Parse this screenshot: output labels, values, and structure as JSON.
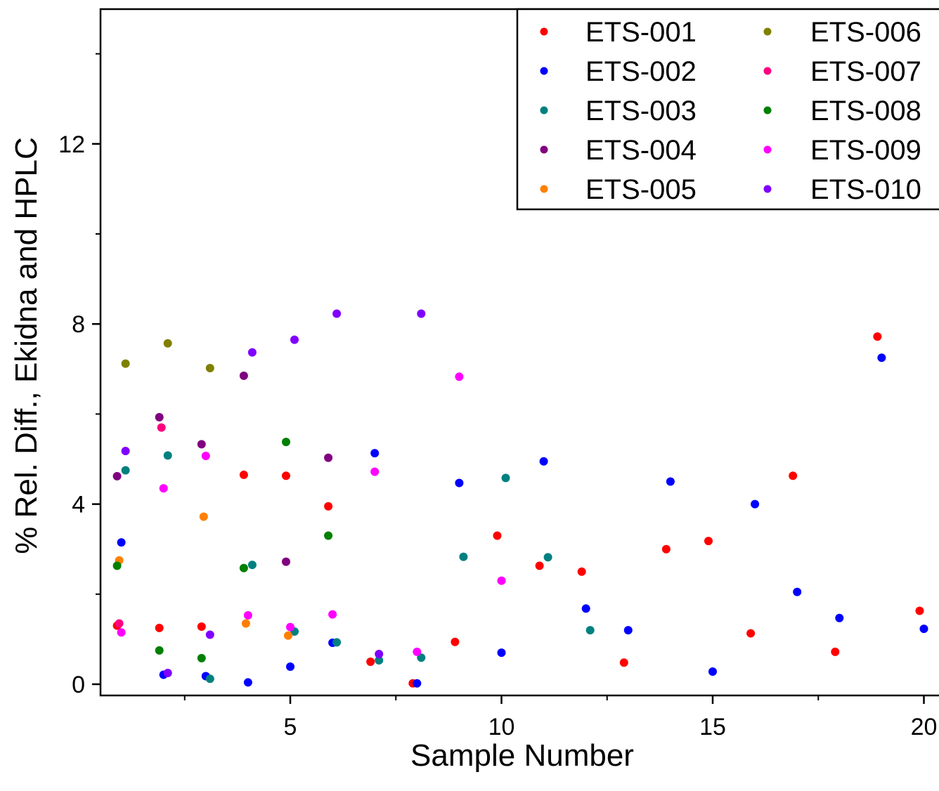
{
  "chart_data": {
    "type": "scatter",
    "title": "",
    "xlabel": "Sample Number",
    "ylabel": "% Rel. Diff., Ekidna and HPLC",
    "xlim": [
      0.9,
      20.2
    ],
    "ylim": [
      -0.2,
      15.0
    ],
    "x_ticks": [
      5,
      10,
      15,
      20
    ],
    "x_tick_labels": [
      "5",
      "10",
      "15",
      "20"
    ],
    "x_minor_ticks": [
      2.5,
      7.5,
      12.5,
      17.5
    ],
    "y_ticks": [
      0,
      4,
      8,
      12
    ],
    "y_tick_labels": [
      "0",
      "4",
      "8",
      "12"
    ],
    "y_minor_ticks": [
      2,
      6,
      10,
      14
    ],
    "grid": false,
    "legend_position": "top-right",
    "series": [
      {
        "name": "ETS-001",
        "color": "#ff0000",
        "x": [
          1,
          2,
          3,
          4,
          5,
          6,
          7,
          8,
          9,
          10,
          11,
          12,
          13,
          14,
          15,
          16,
          17,
          18,
          19,
          20
        ],
        "y": [
          1.3,
          1.25,
          1.28,
          4.65,
          4.63,
          3.95,
          0.5,
          0.02,
          0.94,
          3.3,
          2.63,
          2.5,
          0.48,
          3.0,
          3.18,
          1.13,
          4.63,
          0.72,
          7.72,
          1.63
        ]
      },
      {
        "name": "ETS-002",
        "color": "#0000ff",
        "x": [
          1,
          2,
          3,
          4,
          5,
          6,
          7,
          8,
          9,
          10,
          11,
          12,
          13,
          14,
          15,
          16,
          17,
          18,
          19,
          20
        ],
        "y": [
          3.15,
          0.21,
          0.18,
          0.04,
          0.39,
          0.92,
          5.13,
          0.02,
          4.47,
          0.7,
          4.95,
          1.68,
          1.2,
          4.5,
          0.28,
          4.0,
          2.05,
          1.47,
          7.25,
          1.23
        ]
      },
      {
        "name": "ETS-003",
        "color": "#008080",
        "x": [
          1,
          2,
          3,
          4,
          5,
          6,
          7,
          8,
          9,
          10,
          11,
          12
        ],
        "y": [
          4.75,
          5.08,
          0.12,
          2.65,
          1.17,
          0.93,
          0.53,
          0.59,
          2.83,
          4.58,
          2.82,
          1.2
        ]
      },
      {
        "name": "ETS-004",
        "color": "#800080",
        "x": [
          1,
          2,
          3,
          4,
          5,
          6
        ],
        "y": [
          4.62,
          5.93,
          5.33,
          6.85,
          2.72,
          5.03
        ]
      },
      {
        "name": "ETS-005",
        "color": "#ff8000",
        "x": [
          1,
          3,
          4,
          5
        ],
        "y": [
          2.75,
          3.72,
          1.35,
          1.08
        ]
      },
      {
        "name": "ETS-006",
        "color": "#808000",
        "x": [
          1,
          2,
          3
        ],
        "y": [
          7.12,
          7.57,
          7.02
        ]
      },
      {
        "name": "ETS-007",
        "color": "#ff0080",
        "x": [
          1,
          2
        ],
        "y": [
          1.35,
          5.7
        ]
      },
      {
        "name": "ETS-008",
        "color": "#008000",
        "x": [
          1,
          2,
          3,
          4,
          5,
          6
        ],
        "y": [
          2.63,
          0.75,
          0.58,
          2.58,
          5.38,
          3.3
        ]
      },
      {
        "name": "ETS-009",
        "color": "#ff00ff",
        "x": [
          1,
          2,
          3,
          4,
          5,
          6,
          7,
          8,
          9,
          10
        ],
        "y": [
          1.15,
          4.35,
          5.07,
          1.53,
          1.27,
          1.55,
          4.72,
          0.72,
          6.83,
          2.3
        ]
      },
      {
        "name": "ETS-010",
        "color": "#8000ff",
        "x": [
          1,
          2,
          3,
          4,
          5,
          6,
          7,
          8
        ],
        "y": [
          5.18,
          0.25,
          1.1,
          7.37,
          7.65,
          8.23,
          0.67,
          8.23
        ]
      }
    ]
  }
}
